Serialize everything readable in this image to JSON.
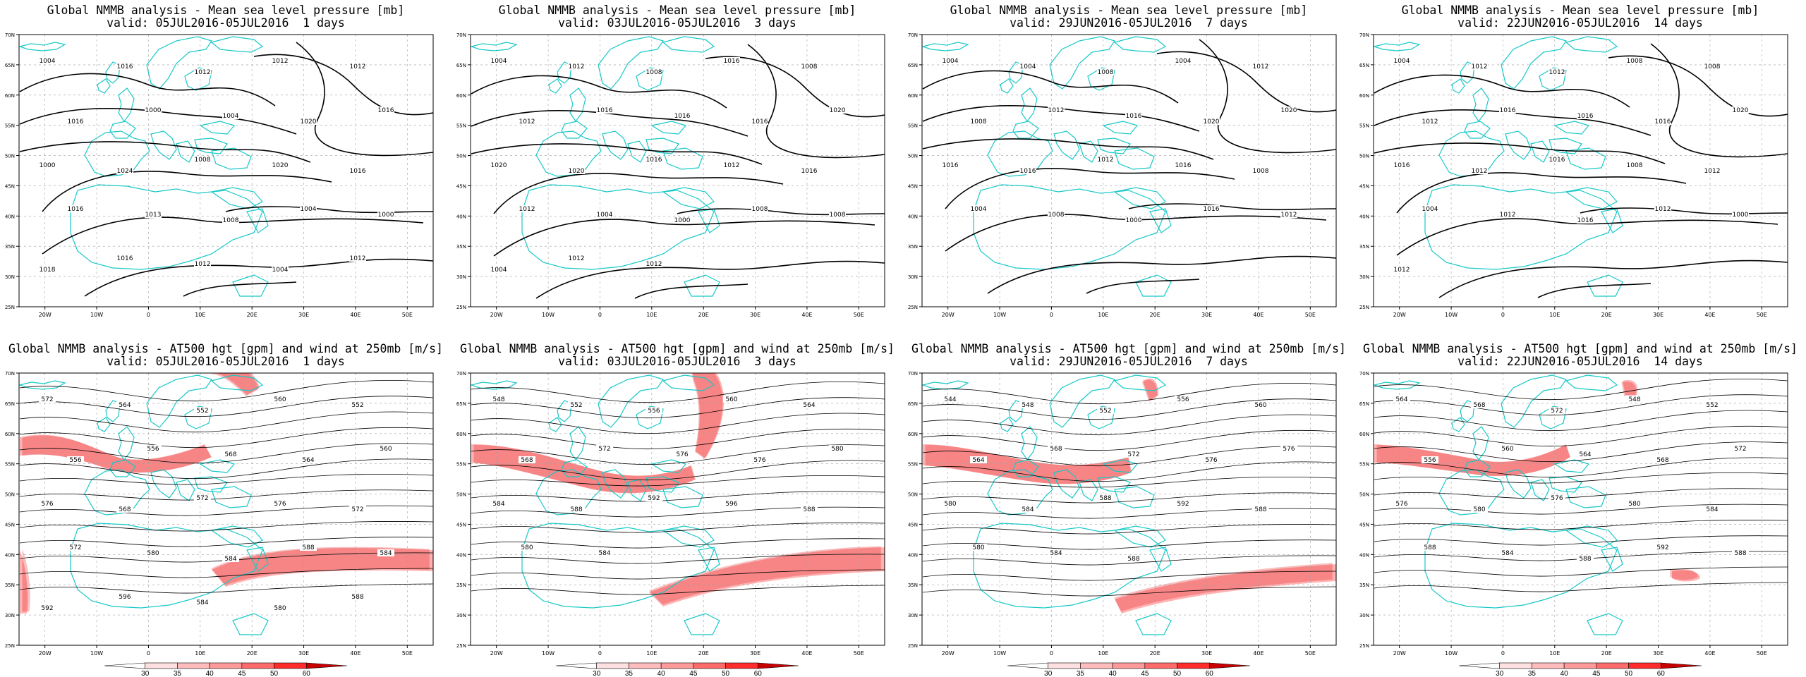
{
  "panels": [
    {
      "id": "p1",
      "row": 0,
      "col": 0,
      "kind": "mslp",
      "title": "Global NMMB analysis - Mean sea level pressure [mb]",
      "subtitle": "valid: 05JUL2016-05JUL2016  1 days",
      "contour_labels": [
        "1004",
        "1016",
        "1012",
        "1012",
        "1012",
        "1016",
        "1000",
        "1004",
        "1020",
        "1016",
        "1000",
        "1024",
        "1008",
        "1020",
        "1016",
        "1016",
        "1013",
        "1008",
        "1004",
        "1000",
        "1018",
        "1016",
        "1012",
        "1004",
        "1012",
        "1004"
      ]
    },
    {
      "id": "p2",
      "row": 0,
      "col": 1,
      "kind": "mslp",
      "title": "Global NMMB analysis - Mean sea level pressure [mb]",
      "subtitle": "valid: 03JUL2016-05JUL2016  3 days",
      "contour_labels": [
        "1004",
        "1012",
        "1008",
        "1016",
        "1008",
        "1012",
        "1016",
        "1016",
        "1016",
        "1020",
        "1020",
        "1020",
        "1016",
        "1012",
        "1016",
        "1012",
        "1004",
        "1000",
        "1008",
        "1008",
        "1004",
        "1012",
        "1012"
      ]
    },
    {
      "id": "p3",
      "row": 0,
      "col": 2,
      "kind": "mslp",
      "title": "Global NMMB analysis - Mean sea level pressure [mb]",
      "subtitle": "valid: 29JUN2016-05JUL2016  7 days",
      "contour_labels": [
        "1004",
        "1004",
        "1008",
        "1004",
        "1012",
        "1008",
        "1012",
        "1016",
        "1020",
        "1020",
        "1016",
        "1016",
        "1012",
        "1016",
        "1008",
        "1004",
        "1008",
        "1000",
        "1016",
        "1012"
      ]
    },
    {
      "id": "p4",
      "row": 0,
      "col": 3,
      "kind": "mslp",
      "title": "Global NMMB analysis - Mean sea level pressure [mb]",
      "subtitle": "valid: 22JUN2016-05JUL2016  14 days",
      "contour_labels": [
        "1004",
        "1012",
        "1012",
        "1008",
        "1008",
        "1012",
        "1016",
        "1016",
        "1016",
        "1020",
        "1016",
        "1012",
        "1016",
        "1008",
        "1012",
        "1004",
        "1012",
        "1016",
        "1012",
        "1000",
        "1012"
      ]
    },
    {
      "id": "p5",
      "row": 1,
      "col": 0,
      "kind": "z500",
      "title": "Global NMMB analysis - AT500 hgt [gpm] and wind at 250mb [m/s]",
      "subtitle": "valid: 05JUL2016-05JUL2016  1 days",
      "contour_labels": [
        "572",
        "564",
        "552",
        "560",
        "552",
        "556",
        "556",
        "568",
        "564",
        "560",
        "576",
        "568",
        "572",
        "576",
        "572",
        "572",
        "580",
        "584",
        "588",
        "584",
        "592",
        "596",
        "584",
        "580",
        "588"
      ]
    },
    {
      "id": "p6",
      "row": 1,
      "col": 1,
      "kind": "z500",
      "title": "Global NMMB analysis - AT500 hgt [gpm] and wind at 250mb [m/s]",
      "subtitle": "valid: 03JUL2016-05JUL2016  3 days",
      "contour_labels": [
        "548",
        "552",
        "556",
        "560",
        "564",
        "568",
        "572",
        "576",
        "576",
        "580",
        "584",
        "588",
        "592",
        "596",
        "588",
        "580",
        "584"
      ]
    },
    {
      "id": "p7",
      "row": 1,
      "col": 2,
      "kind": "z500",
      "title": "Global NMMB analysis - AT500 hgt [gpm] and wind at 250mb [m/s]",
      "subtitle": "valid: 29JUN2016-05JUL2016  7 days",
      "contour_labels": [
        "544",
        "548",
        "552",
        "556",
        "560",
        "564",
        "568",
        "572",
        "576",
        "576",
        "580",
        "584",
        "588",
        "592",
        "588",
        "580",
        "584",
        "588"
      ]
    },
    {
      "id": "p8",
      "row": 1,
      "col": 3,
      "kind": "z500",
      "title": "Global NMMB analysis - AT500 hgt [gpm] and wind at 250mb [m/s]",
      "subtitle": "valid: 22JUN2016-05JUL2016  14 days",
      "contour_labels": [
        "564",
        "568",
        "572",
        "548",
        "552",
        "556",
        "560",
        "564",
        "568",
        "572",
        "576",
        "580",
        "576",
        "580",
        "584",
        "588",
        "584",
        "588",
        "592",
        "588"
      ]
    }
  ],
  "axes": {
    "lon_labels": [
      "20W",
      "10W",
      "0",
      "10E",
      "20E",
      "30E",
      "40E",
      "50E"
    ],
    "lat_labels": [
      "70N",
      "65N",
      "60N",
      "55N",
      "50N",
      "45N",
      "40N",
      "35N",
      "30N",
      "25N"
    ],
    "lon_range": [
      -25,
      55
    ],
    "lat_range": [
      25,
      70
    ],
    "grid": "dashed"
  },
  "colorbar": {
    "labels": [
      "30",
      "35",
      "40",
      "45",
      "50",
      "60"
    ],
    "colors": [
      "#ffffff",
      "#ffe0e0",
      "#ffbcbc",
      "#ff9a9a",
      "#ff6b6b",
      "#ff2c2c",
      "#c80000"
    ]
  },
  "colors": {
    "coast": "#19c8c8",
    "contour": "#000000",
    "jet": "#ff5555",
    "grid": "#a0a0a0"
  }
}
